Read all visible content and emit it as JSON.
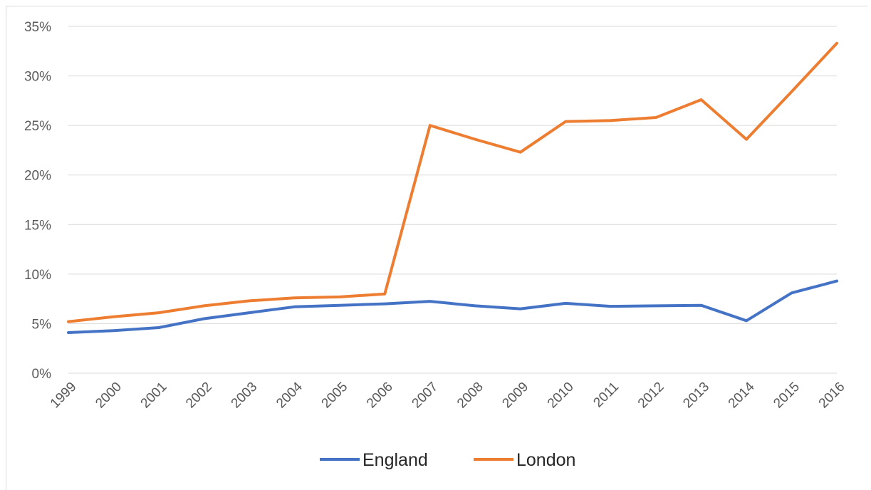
{
  "chart_data": {
    "type": "line",
    "title": "",
    "xlabel": "",
    "ylabel": "",
    "x": [
      "1999",
      "2000",
      "2001",
      "2002",
      "2003",
      "2004",
      "2005",
      "2006",
      "2007",
      "2008",
      "2009",
      "2010",
      "2011",
      "2012",
      "2013",
      "2014",
      "2015",
      "2016"
    ],
    "y_ticks": [
      "0%",
      "5%",
      "10%",
      "15%",
      "20%",
      "25%",
      "30%",
      "35%"
    ],
    "ylim": [
      0,
      35
    ],
    "y_unit": "%",
    "grid": "horizontal",
    "legend_position": "bottom",
    "series": [
      {
        "name": "England",
        "color": "#4472c4",
        "values": [
          4.1,
          4.3,
          4.6,
          5.5,
          6.1,
          6.7,
          6.85,
          7.0,
          7.25,
          6.8,
          6.5,
          7.05,
          6.75,
          6.8,
          6.85,
          5.3,
          8.1,
          9.3
        ]
      },
      {
        "name": "London",
        "color": "#ed7d31",
        "values": [
          5.2,
          5.7,
          6.1,
          6.8,
          7.3,
          7.6,
          7.7,
          8.0,
          25.0,
          23.6,
          22.3,
          25.4,
          25.5,
          25.8,
          27.6,
          23.6,
          28.4,
          33.3
        ]
      }
    ]
  }
}
